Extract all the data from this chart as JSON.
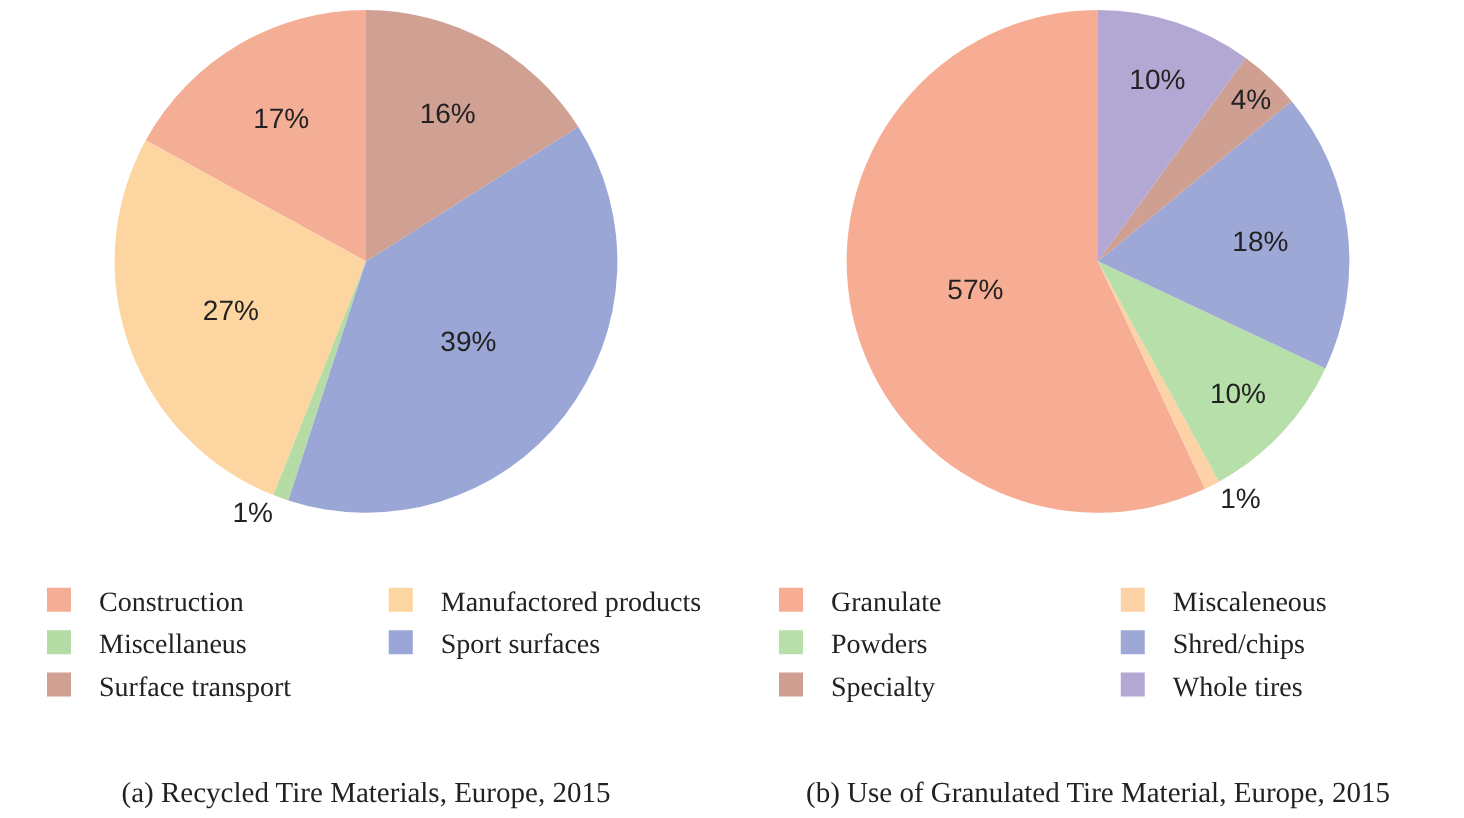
{
  "chart_data": [
    {
      "type": "pie",
      "title": "(a) Recycled Tire Materials, Europe, 2015",
      "categories": [
        "Construction",
        "Manufactored products",
        "Miscellaneus",
        "Sport surfaces",
        "Surface transport"
      ],
      "values": [
        17,
        27,
        1,
        39,
        16
      ],
      "colors": [
        "#f4ae96",
        "#fdd5a0",
        "#b5dca4",
        "#9aa6d6",
        "#d0a092"
      ],
      "value_labels": [
        "17%",
        "27%",
        "1%",
        "39%",
        "16%"
      ],
      "legend": "bottom"
    },
    {
      "type": "pie",
      "title": "(b) Use of Granulated Tire Material, Europe, 2015",
      "categories": [
        "Granulate",
        "Miscaleneous",
        "Powders",
        "Shred/chips",
        "Specialty",
        "Whole tires"
      ],
      "values": [
        57,
        1,
        10,
        18,
        4,
        10
      ],
      "colors": [
        "#f6ad94",
        "#fdd2a6",
        "#b6dfaa",
        "#9ea8d6",
        "#cf9f92",
        "#b3a8d4"
      ],
      "value_labels": [
        "57%",
        "1%",
        "10%",
        "18%",
        "4%",
        "10%"
      ],
      "legend": "bottom"
    }
  ]
}
